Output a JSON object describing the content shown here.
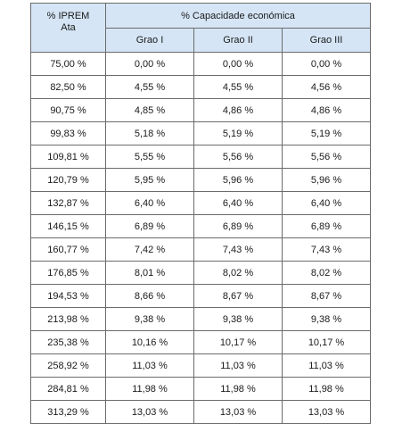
{
  "table": {
    "header": {
      "first_col": [
        "% IPREM",
        "Ata"
      ],
      "group": "% Capacidade económica",
      "subcols": [
        "Grao I",
        "Grao II",
        "Grao III"
      ]
    },
    "rows": [
      [
        "75,00 %",
        "0,00 %",
        "0,00 %",
        "0,00 %"
      ],
      [
        "82,50 %",
        "4,55 %",
        "4,55 %",
        "4,56 %"
      ],
      [
        "90,75 %",
        "4,85 %",
        "4,86 %",
        "4,86 %"
      ],
      [
        "99,83 %",
        "5,18 %",
        "5,19 %",
        "5,19 %"
      ],
      [
        "109,81 %",
        "5,55 %",
        "5,56 %",
        "5,56 %"
      ],
      [
        "120,79 %",
        "5,95 %",
        "5,96 %",
        "5,96 %"
      ],
      [
        "132,87 %",
        "6,40 %",
        "6,40 %",
        "6,40 %"
      ],
      [
        "146,15 %",
        "6,89 %",
        "6,89 %",
        "6,89 %"
      ],
      [
        "160,77 %",
        "7,42 %",
        "7,43 %",
        "7,43 %"
      ],
      [
        "176,85 %",
        "8,01 %",
        "8,02 %",
        "8,02 %"
      ],
      [
        "194,53 %",
        "8,66 %",
        "8,67 %",
        "8,67 %"
      ],
      [
        "213,98 %",
        "9,38 %",
        "9,38 %",
        "9,38 %"
      ],
      [
        "235,38 %",
        "10,16 %",
        "10,17 %",
        "10,17 %"
      ],
      [
        "258,92 %",
        "11,03 %",
        "11,03 %",
        "11,03 %"
      ],
      [
        "284,81 %",
        "11,98 %",
        "11,98 %",
        "11,98 %"
      ],
      [
        "313,29 %",
        "13,03 %",
        "13,03 %",
        "13,03 %"
      ]
    ]
  },
  "colors": {
    "header_bg": "#d5e5f5",
    "border": "#6b6b6b"
  }
}
